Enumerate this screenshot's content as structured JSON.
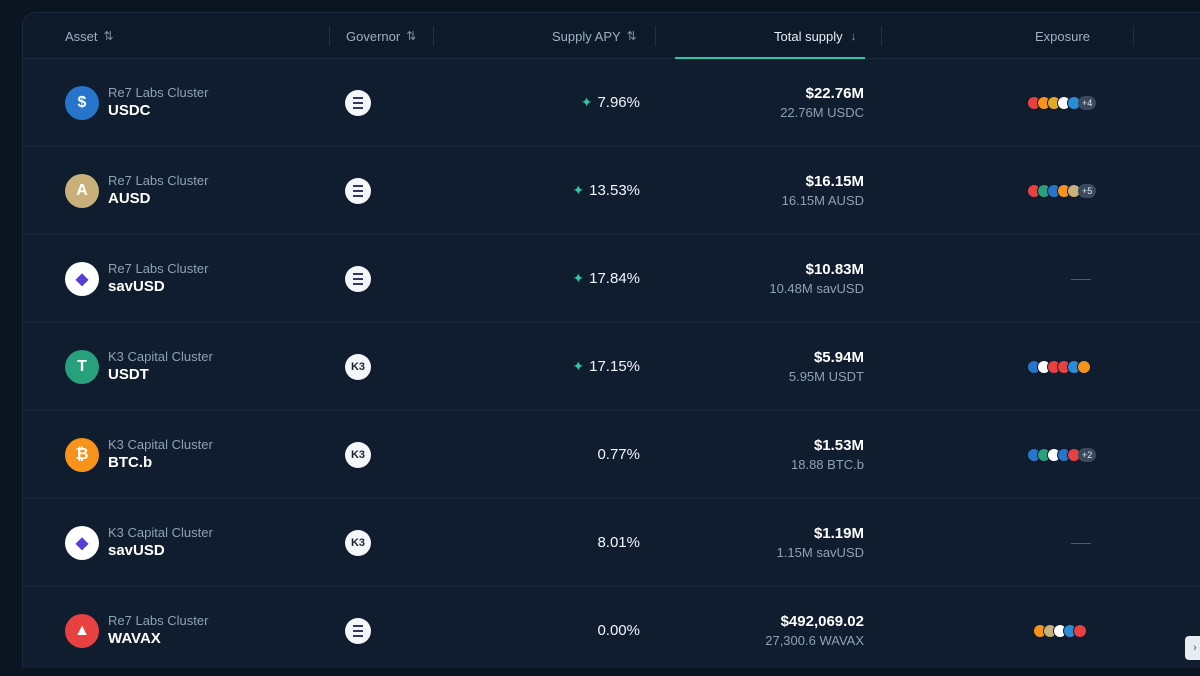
{
  "header": {
    "asset": "Asset",
    "governor": "Governor",
    "supply_apy": "Supply APY",
    "total_supply": "Total supply",
    "exposure": "Exposure",
    "sort_icon": "⇅",
    "sort_desc_icon": "↓"
  },
  "rows": [
    {
      "cluster": "Re7 Labs Cluster",
      "symbol": "USDC",
      "icon": "usdc-icon",
      "icon_color": "#2775ca",
      "icon_glyph": "$",
      "governor": "euler",
      "apy": "7.96%",
      "boosted": true,
      "supply": "$22.76M",
      "supply_sub": "22.76M USDC",
      "exposure_colors": [
        "#e84142",
        "#f7931a",
        "#e3a92b",
        "#ffffff",
        "#2a8bd8"
      ],
      "exposure_more": "+4"
    },
    {
      "cluster": "Re7 Labs Cluster",
      "symbol": "AUSD",
      "icon": "ausd-icon",
      "icon_color": "#c9b07a",
      "icon_glyph": "A",
      "governor": "euler",
      "apy": "13.53%",
      "boosted": true,
      "supply": "$16.15M",
      "supply_sub": "16.15M AUSD",
      "exposure_colors": [
        "#e84142",
        "#26a17b",
        "#2775ca",
        "#f7931a",
        "#c9b07a"
      ],
      "exposure_more": "+5"
    },
    {
      "cluster": "Re7 Labs Cluster",
      "symbol": "savUSD",
      "icon": "savusd-icon",
      "icon_color": "#ffffff",
      "icon_glyph": "◆",
      "governor": "euler",
      "apy": "17.84%",
      "boosted": true,
      "supply": "$10.83M",
      "supply_sub": "10.48M savUSD",
      "exposure_colors": [],
      "exposure_more": ""
    },
    {
      "cluster": "K3 Capital Cluster",
      "symbol": "USDT",
      "icon": "usdt-icon",
      "icon_color": "#26a17b",
      "icon_glyph": "T",
      "governor": "k3",
      "governor_label": "K3",
      "apy": "17.15%",
      "boosted": true,
      "supply": "$5.94M",
      "supply_sub": "5.95M USDT",
      "exposure_colors": [
        "#2775ca",
        "#ffffff",
        "#e84142",
        "#e84142",
        "#2a8bd8",
        "#f7931a"
      ],
      "exposure_more": ""
    },
    {
      "cluster": "K3 Capital Cluster",
      "symbol": "BTC.b",
      "icon": "btcb-icon",
      "icon_color": "#f7931a",
      "icon_glyph": "₿",
      "governor": "k3",
      "governor_label": "K3",
      "apy": "0.77%",
      "boosted": false,
      "supply": "$1.53M",
      "supply_sub": "18.88 BTC.b",
      "exposure_colors": [
        "#2775ca",
        "#26a17b",
        "#ffffff",
        "#2775ca",
        "#e84142"
      ],
      "exposure_more": "+2"
    },
    {
      "cluster": "K3 Capital Cluster",
      "symbol": "savUSD",
      "icon": "savusd-icon",
      "icon_color": "#ffffff",
      "icon_glyph": "◆",
      "governor": "k3",
      "governor_label": "K3",
      "apy": "8.01%",
      "boosted": false,
      "supply": "$1.19M",
      "supply_sub": "1.15M savUSD",
      "exposure_colors": [],
      "exposure_more": ""
    },
    {
      "cluster": "Re7 Labs Cluster",
      "symbol": "WAVAX",
      "icon": "wavax-icon",
      "icon_color": "#e84142",
      "icon_glyph": "▲",
      "governor": "euler",
      "apy": "0.00%",
      "boosted": false,
      "supply": "$492,069.02",
      "supply_sub": "27,300.6 WAVAX",
      "exposure_colors": [
        "#f7931a",
        "#c9b07a",
        "#ffffff",
        "#2a8bd8",
        "#e84142"
      ],
      "exposure_more": ""
    }
  ],
  "boost_icon": "✦"
}
